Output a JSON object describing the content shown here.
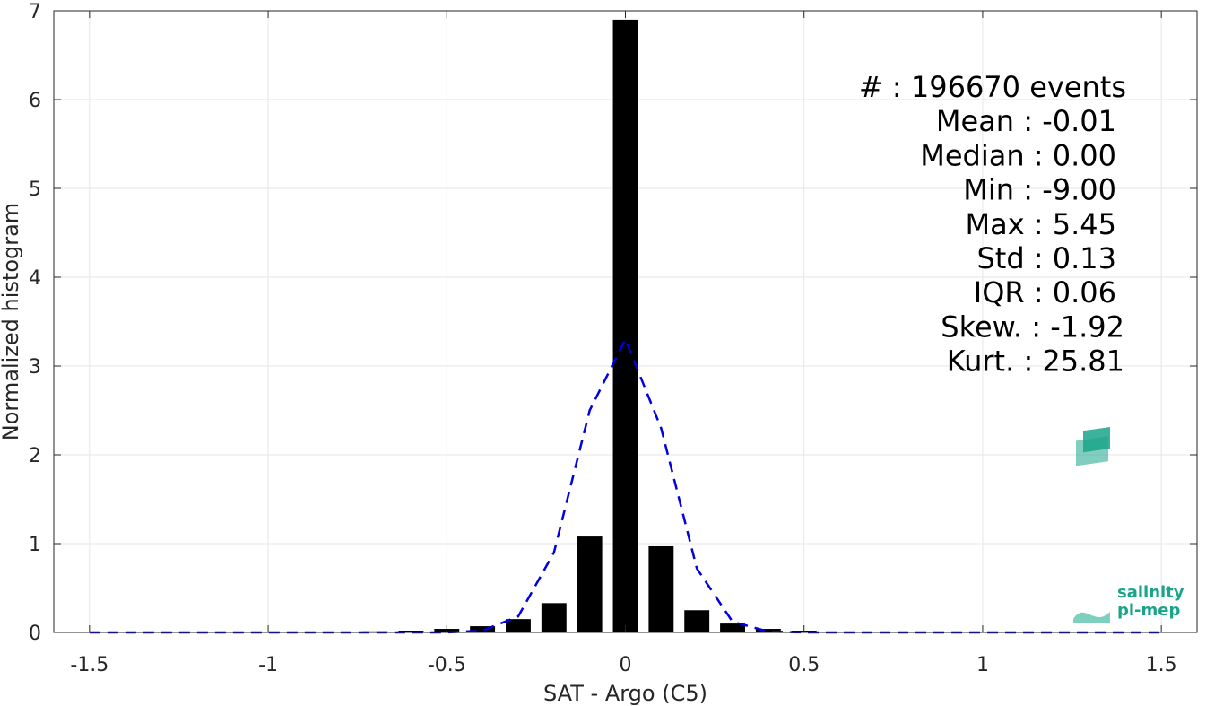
{
  "chart_data": {
    "type": "bar",
    "xlabel": "SAT - Argo (C5)",
    "ylabel": "Normalized histogram",
    "xlim": [
      -1.6,
      1.6
    ],
    "ylim": [
      0,
      7
    ],
    "xticks": [
      -1.5,
      -1,
      -0.5,
      0,
      0.5,
      1,
      1.5
    ],
    "xtick_labels": [
      "-1.5",
      "-1",
      "-0.5",
      "0",
      "0.5",
      "1",
      "1.5"
    ],
    "yticks": [
      0,
      1,
      2,
      3,
      4,
      5,
      6,
      7
    ],
    "ytick_labels": [
      "0",
      "1",
      "2",
      "3",
      "4",
      "5",
      "6",
      "7"
    ],
    "grid": true,
    "bars": {
      "x": [
        -1.5,
        -1.4,
        -1.3,
        -1.2,
        -1.1,
        -1.0,
        -0.9,
        -0.8,
        -0.7,
        -0.6,
        -0.5,
        -0.4,
        -0.3,
        -0.2,
        -0.1,
        0.0,
        0.1,
        0.2,
        0.3,
        0.4,
        0.5,
        0.6,
        0.7,
        0.8,
        0.9,
        1.0,
        1.1,
        1.2,
        1.3,
        1.4,
        1.5
      ],
      "values": [
        0.003,
        0.003,
        0.003,
        0.003,
        0.003,
        0.004,
        0.005,
        0.007,
        0.012,
        0.02,
        0.04,
        0.07,
        0.15,
        0.33,
        1.08,
        6.9,
        0.97,
        0.25,
        0.1,
        0.04,
        0.02,
        0.01,
        0.006,
        0.005,
        0.004,
        0.003,
        0.003,
        0.003,
        0.003,
        0.003,
        0.003
      ],
      "color": "#000000",
      "bar_width": 0.07
    },
    "fit_curve": {
      "style": "dashed",
      "color": "#0000e0",
      "x": [
        -1.5,
        -1.4,
        -1.3,
        -1.2,
        -1.1,
        -1.0,
        -0.9,
        -0.8,
        -0.7,
        -0.6,
        -0.5,
        -0.4,
        -0.3,
        -0.2,
        -0.1,
        0.0,
        0.1,
        0.2,
        0.3,
        0.4,
        0.5,
        0.6,
        0.7,
        0.8,
        0.9,
        1.0,
        1.1,
        1.2,
        1.3,
        1.4,
        1.5
      ],
      "y": [
        0,
        0,
        0,
        0,
        0,
        0,
        0,
        0,
        0,
        0,
        0,
        0.02,
        0.18,
        0.9,
        2.5,
        3.3,
        2.3,
        0.72,
        0.12,
        0.01,
        0,
        0,
        0,
        0,
        0,
        0,
        0,
        0,
        0,
        0,
        0
      ]
    },
    "annotations": [
      {
        "label": "#",
        "value": ": 196670 events"
      },
      {
        "label": "Mean",
        "value": ": -0.01"
      },
      {
        "label": "Median",
        "value": ": 0.00"
      },
      {
        "label": "Min",
        "value": ": -9.00"
      },
      {
        "label": "Max",
        "value": ": 5.45"
      },
      {
        "label": "Std",
        "value": ": 0.13"
      },
      {
        "label": "IQR",
        "value": ": 0.06"
      },
      {
        "label": "Skew.",
        "value": ": -1.92"
      },
      {
        "label": "Kurt.",
        "value": ": 25.81"
      }
    ]
  },
  "logo": {
    "line1": "salinity",
    "line2": "pi-mep",
    "color": "#1aa58a"
  }
}
